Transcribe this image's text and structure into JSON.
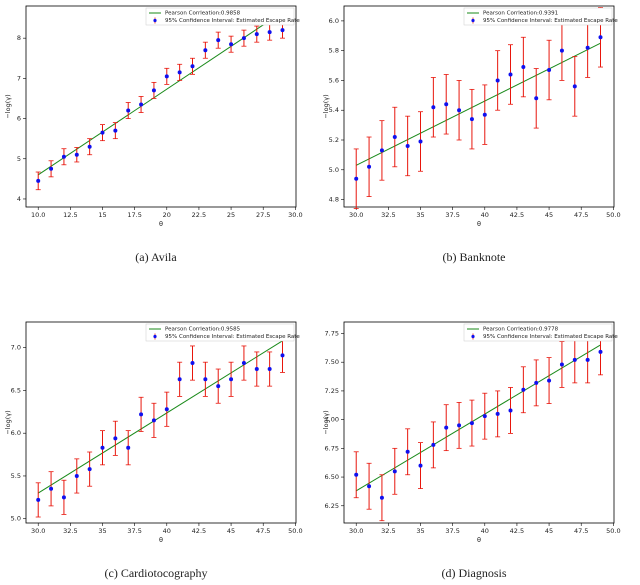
{
  "chart_data": [
    {
      "type": "scatter",
      "caption": "(a)  Avila",
      "xlabel": "θ",
      "ylabel": "−log(γ)",
      "xlim": [
        9.05,
        30.05
      ],
      "ylim": [
        3.8,
        8.8
      ],
      "xticks": [
        {
          "value": 10,
          "label": "10.0"
        },
        12.5,
        15.0,
        17.5,
        20.0,
        22.5,
        25.0,
        27.5,
        {
          "value": 30,
          "label": "30.0"
        }
      ],
      "yticks": [
        4,
        5,
        6,
        7,
        8
      ],
      "series": [
        {
          "name": "Pearson Corrleation:0.9858",
          "color": "#1a8a1a",
          "x": [
            10,
            29
          ],
          "values": [
            4.6,
            8.65
          ]
        },
        {
          "name": "95% Confidence Interval: Estimated Escape Rate",
          "color": "#1010ee",
          "error_color": "#e8160c",
          "x": [
            10,
            11,
            12,
            13,
            14,
            15,
            16,
            17,
            18,
            19,
            20,
            21,
            22,
            23,
            24,
            25,
            26,
            27,
            28,
            29
          ],
          "values": [
            4.45,
            4.75,
            5.05,
            5.1,
            5.3,
            5.65,
            5.7,
            6.2,
            6.35,
            6.7,
            7.05,
            7.15,
            7.3,
            7.7,
            7.95,
            7.85,
            8.0,
            8.1,
            8.15,
            8.2
          ],
          "errors": [
            0.22,
            0.2,
            0.2,
            0.18,
            0.2,
            0.2,
            0.2,
            0.2,
            0.2,
            0.2,
            0.2,
            0.2,
            0.2,
            0.2,
            0.2,
            0.2,
            0.2,
            0.2,
            0.2,
            0.2
          ]
        }
      ]
    },
    {
      "type": "scatter",
      "caption": "(b)  Banknote",
      "xlabel": "θ",
      "ylabel": "−log(γ)",
      "xlim": [
        29.05,
        50.05
      ],
      "ylim": [
        4.75,
        6.1
      ],
      "xticks": [
        {
          "value": 30,
          "label": "30.0"
        },
        32.5,
        35.0,
        37.5,
        40.0,
        42.5,
        45.0,
        47.5,
        {
          "value": 50,
          "label": "50.0"
        }
      ],
      "yticks": [
        4.8,
        {
          "value": 5,
          "label": "5.0"
        },
        5.2,
        5.4,
        5.6,
        5.8,
        {
          "value": 6,
          "label": "6.0"
        }
      ],
      "series": [
        {
          "name": "Pearson Corrleation:0.9391",
          "color": "#1a8a1a",
          "x": [
            30,
            49
          ],
          "values": [
            5.03,
            5.85
          ]
        },
        {
          "name": "95% Confidence Interval: Estimated Escape Rate",
          "color": "#1010ee",
          "error_color": "#e8160c",
          "x": [
            30,
            31,
            32,
            33,
            34,
            35,
            36,
            37,
            38,
            39,
            40,
            41,
            42,
            43,
            44,
            45,
            46,
            47,
            48,
            49
          ],
          "values": [
            4.94,
            5.02,
            5.13,
            5.22,
            5.16,
            5.19,
            5.42,
            5.44,
            5.4,
            5.34,
            5.37,
            5.6,
            5.64,
            5.69,
            5.48,
            5.67,
            5.8,
            5.56,
            5.82,
            5.89
          ],
          "errors": [
            0.2,
            0.2,
            0.2,
            0.2,
            0.2,
            0.2,
            0.2,
            0.2,
            0.2,
            0.2,
            0.2,
            0.2,
            0.2,
            0.2,
            0.2,
            0.2,
            0.2,
            0.2,
            0.2,
            0.2
          ]
        }
      ]
    },
    {
      "type": "scatter",
      "caption": "(c)  Cardiotocography",
      "xlabel": "θ",
      "ylabel": "−log(γ)",
      "xlim": [
        29.05,
        50.05
      ],
      "ylim": [
        4.95,
        7.3
      ],
      "xticks": [
        {
          "value": 30,
          "label": "30.0"
        },
        32.5,
        35.0,
        37.5,
        40.0,
        42.5,
        45.0,
        47.5,
        {
          "value": 50,
          "label": "50.0"
        }
      ],
      "yticks": [
        {
          "value": 5,
          "label": "5.0"
        },
        5.5,
        {
          "value": 6,
          "label": "6.0"
        },
        6.5,
        {
          "value": 7,
          "label": "7.0"
        }
      ],
      "series": [
        {
          "name": "Pearson Corrleation:0.9585",
          "color": "#1a8a1a",
          "x": [
            30,
            49
          ],
          "values": [
            5.3,
            7.08
          ]
        },
        {
          "name": "95% Confidence Interval: Estimated Escape Rate",
          "color": "#1010ee",
          "error_color": "#e8160c",
          "x": [
            30,
            31,
            32,
            33,
            34,
            35,
            36,
            37,
            38,
            39,
            40,
            41,
            42,
            43,
            44,
            45,
            46,
            47,
            48,
            49
          ],
          "values": [
            5.22,
            5.35,
            5.25,
            5.5,
            5.58,
            5.83,
            5.94,
            5.83,
            6.22,
            6.15,
            6.28,
            6.63,
            6.82,
            6.63,
            6.55,
            6.63,
            6.82,
            6.75,
            6.75,
            6.91
          ],
          "errors": [
            0.2,
            0.2,
            0.2,
            0.2,
            0.2,
            0.2,
            0.2,
            0.2,
            0.2,
            0.2,
            0.2,
            0.2,
            0.2,
            0.2,
            0.2,
            0.2,
            0.2,
            0.2,
            0.2,
            0.2
          ]
        }
      ]
    },
    {
      "type": "scatter",
      "caption": "(d)  Diagnosis",
      "xlabel": "θ",
      "ylabel": "−log(γ)",
      "xlim": [
        29.05,
        50.05
      ],
      "ylim": [
        6.1,
        7.85
      ],
      "xticks": [
        {
          "value": 30,
          "label": "30.0"
        },
        32.5,
        35.0,
        37.5,
        40.0,
        42.5,
        45.0,
        47.5,
        {
          "value": 50,
          "label": "50.0"
        }
      ],
      "yticks": [
        6.25,
        {
          "value": 6.5,
          "label": "6.50"
        },
        6.75,
        {
          "value": 7,
          "label": "7.00"
        },
        7.25,
        {
          "value": 7.5,
          "label": "7.50"
        },
        7.75
      ],
      "series": [
        {
          "name": "Pearson Corrleation:0.9778",
          "color": "#1a8a1a",
          "x": [
            30,
            49
          ],
          "values": [
            6.38,
            7.65
          ]
        },
        {
          "name": "95% Confidence Interval: Estimated Escape Rate",
          "color": "#1010ee",
          "error_color": "#e8160c",
          "x": [
            30,
            31,
            32,
            33,
            34,
            35,
            36,
            37,
            38,
            39,
            40,
            41,
            42,
            43,
            44,
            45,
            46,
            47,
            48,
            49
          ],
          "values": [
            6.52,
            6.42,
            6.32,
            6.55,
            6.72,
            6.6,
            6.78,
            6.93,
            6.95,
            6.97,
            7.03,
            7.05,
            7.08,
            7.26,
            7.32,
            7.34,
            7.48,
            7.52,
            7.52,
            7.59
          ],
          "errors": [
            0.2,
            0.2,
            0.2,
            0.2,
            0.2,
            0.2,
            0.2,
            0.2,
            0.2,
            0.2,
            0.2,
            0.2,
            0.2,
            0.2,
            0.2,
            0.2,
            0.2,
            0.2,
            0.2,
            0.2
          ]
        }
      ]
    }
  ]
}
